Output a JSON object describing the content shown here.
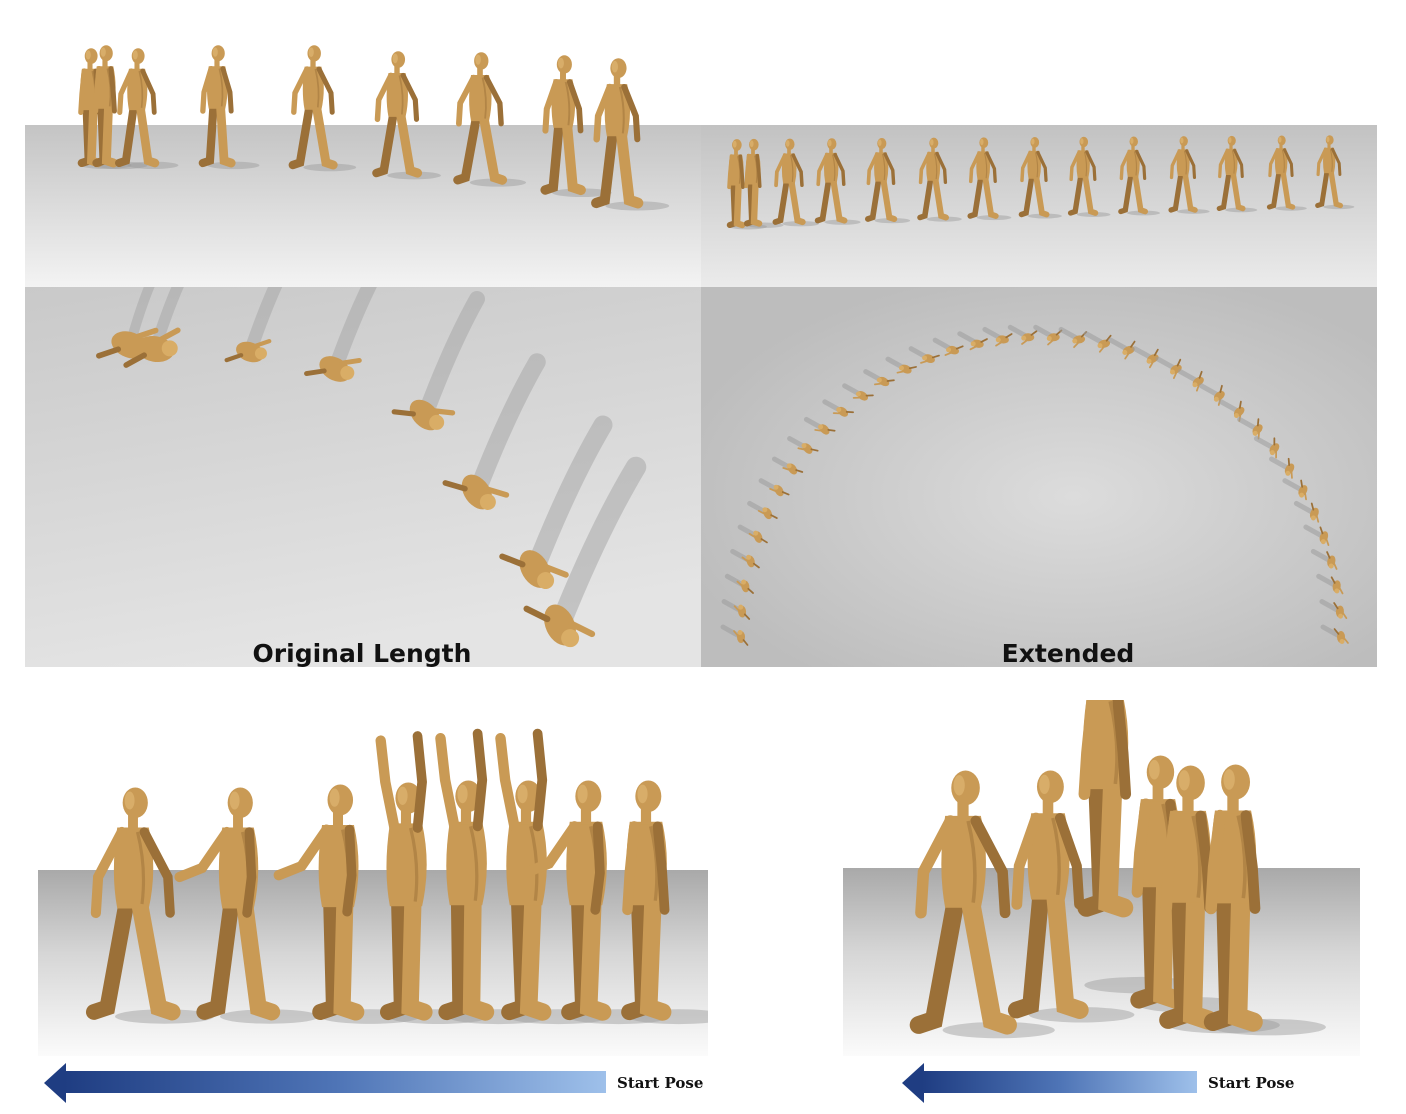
{
  "labels": {
    "original": "Original Length",
    "extended": "Extended"
  },
  "arrows": {
    "left_label": "Start Pose",
    "right_label": "Start Pose"
  },
  "colors": {
    "figure": "#c99a55",
    "figure_dark": "#9b7038",
    "shadow": "#9a9a9a",
    "arrow_dark": "#1f3d82",
    "arrow_light": "#9ec0ea"
  }
}
